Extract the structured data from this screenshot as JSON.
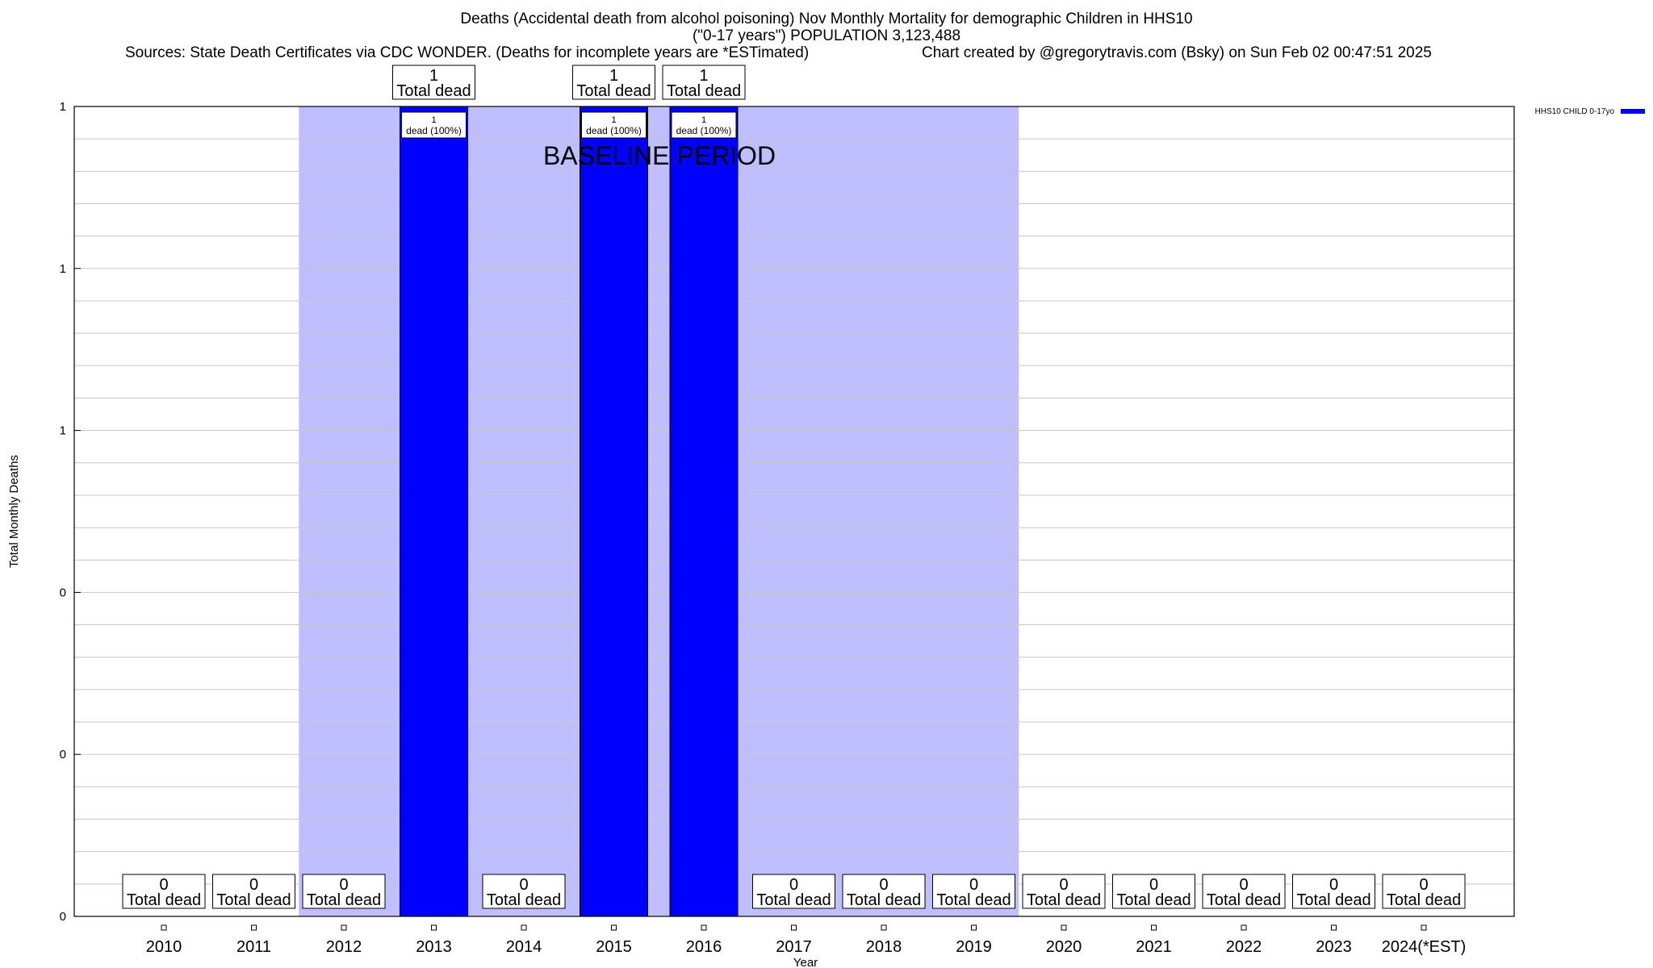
{
  "title": {
    "line1": "Deaths (Accidental death from alcohol poisoning) Nov Monthly Mortality for demographic Children in HHS10",
    "line2": "(\"0-17 years\") POPULATION 3,123,488",
    "sources": "Sources: State Death Certificates via CDC WONDER. (Deaths for incomplete years are *ESTimated)",
    "credit": "Chart created by @gregorytravis.com (Bsky) on Sun Feb 02 00:47:51 2025"
  },
  "colors": {
    "bar": "#0000ff",
    "baseline_shade": "#bfbfff",
    "grid": "#c8c8c8",
    "frame": "#000000"
  },
  "chart_data": {
    "type": "bar",
    "categories": [
      "2010",
      "2011",
      "2012",
      "2013",
      "2014",
      "2015",
      "2016",
      "2017",
      "2018",
      "2019",
      "2020",
      "2021",
      "2022",
      "2023",
      "2024(*EST)"
    ],
    "series": [
      {
        "name": "HHS10 CHILD 0-17yo",
        "values": [
          0,
          0,
          0,
          1,
          0,
          1,
          1,
          0,
          0,
          0,
          0,
          0,
          0,
          0,
          0
        ]
      }
    ],
    "total_labels": [
      "0",
      "0",
      "0",
      "1",
      "0",
      "1",
      "1",
      "0",
      "0",
      "0",
      "0",
      "0",
      "0",
      "0",
      "0"
    ],
    "total_label_suffix": "Total dead",
    "bar_labels": [
      {
        "category": "2013",
        "count": "1",
        "text": "dead (100%)"
      },
      {
        "category": "2015",
        "count": "1",
        "text": "dead (100%)"
      },
      {
        "category": "2016",
        "count": "1",
        "text": "dead (100%)"
      }
    ],
    "baseline": {
      "label": "BASELINE PERIOD",
      "from": "2012",
      "to": "2019"
    },
    "xlabel": "Year",
    "ylabel": "Total Monthly Deaths",
    "ylim": [
      0,
      1
    ],
    "ytick_values": [
      0,
      0.2,
      0.4,
      0.6,
      0.8,
      1.0
    ],
    "ytick_labels": [
      "0",
      "0",
      "0",
      "1",
      "1",
      "1"
    ],
    "minor_grid_per_major": 5,
    "grid": true,
    "legend": {
      "position": "top-right",
      "entries": [
        "HHS10 CHILD 0-17yo"
      ]
    }
  }
}
